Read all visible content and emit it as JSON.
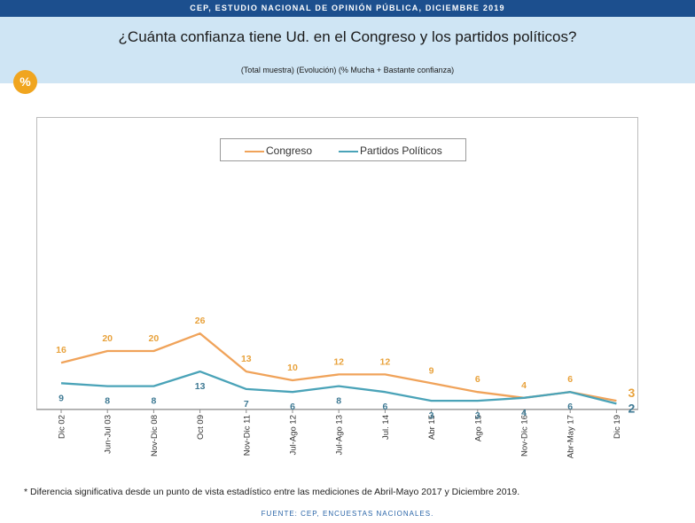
{
  "header": {
    "banner": "CEP, ESTUDIO NACIONAL DE OPINIÓN PÚBLICA, DICIEMBRE 2019",
    "question": "¿Cuánta confianza tiene Ud. en el Congreso y los partidos políticos?",
    "subtitle": "(Total muestra) (Evolución) (% Mucha + Bastante confianza)",
    "badge": "%"
  },
  "chart_data": {
    "type": "line",
    "title": "¿Cuánta confianza tiene Ud. en el Congreso y los partidos políticos?",
    "categories": [
      "Dic 02",
      "Jun-Jul 03",
      "Nov-Dic 08",
      "Oct 09",
      "Nov-Dic 11",
      "Jul-Ago 12",
      "Jul-Ago 13",
      "Jul. 14",
      "Abr 15",
      "Ago 15",
      "Nov-Dic 16",
      "Abr-May 17",
      "Dic 19"
    ],
    "series": [
      {
        "name": "Congreso",
        "color": "#f0a35a",
        "values": [
          16,
          20,
          20,
          26,
          13,
          10,
          12,
          12,
          9,
          6,
          4,
          6,
          3
        ]
      },
      {
        "name": "Partidos Políticos",
        "color": "#4aa3b8",
        "values": [
          9,
          8,
          8,
          13,
          7,
          6,
          8,
          6,
          3,
          3,
          4,
          6,
          2
        ]
      }
    ],
    "ylim": [
      0,
      100
    ],
    "legend_position": "top-center"
  },
  "legend": {
    "congreso": "Congreso",
    "partidos": "Partidos Políticos"
  },
  "footer": {
    "footnote": "* Diferencia significativa desde un punto de vista estadístico entre las mediciones de Abril-Mayo 2017 y Diciembre 2019.",
    "source": "FUENTE: CEP, ENCUESTAS NACIONALES."
  },
  "colors": {
    "banner": "#1c4f8e",
    "title_bg": "#cfe5f4",
    "badge": "#f0a51f",
    "congreso": "#f0a35a",
    "congreso_label": "#e8a23c",
    "partidos": "#4aa3b8",
    "partidos_label": "#3f7a94"
  }
}
